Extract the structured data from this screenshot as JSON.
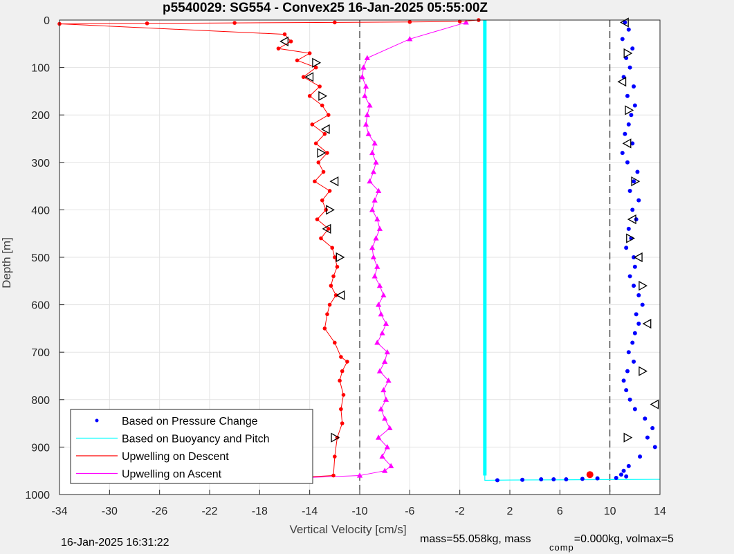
{
  "chart_data": {
    "type": "scatter",
    "title": "p5540029: SG554 - Convex25 16-Jan-2025 05:55:00Z",
    "xlabel": "Vertical Velocity [cm/s]",
    "ylabel": "Depth [m]",
    "xlim": [
      -34,
      14
    ],
    "ylim": [
      0,
      1000
    ],
    "y_reversed": true,
    "grid": true,
    "x_ticks": [
      -34,
      -30,
      -26,
      -22,
      -18,
      -14,
      -10,
      -6,
      -2,
      2,
      6,
      10,
      14
    ],
    "y_ticks": [
      0,
      100,
      200,
      300,
      400,
      500,
      600,
      700,
      800,
      900,
      1000
    ],
    "legend_position": "bottom-left",
    "reference_lines_x": [
      -10,
      10
    ],
    "series": [
      {
        "name": "Based on Pressure Change",
        "color": "#0000ff",
        "style": "dots",
        "x": [
          11.2,
          11.5,
          11.0,
          11.8,
          11.3,
          11.6,
          11.1,
          11.9,
          11.4,
          12.0,
          11.7,
          11.5,
          11.2,
          11.8,
          11.0,
          11.4,
          12.2,
          11.9,
          11.6,
          12.3,
          11.8,
          12.1,
          11.5,
          11.7,
          11.3,
          11.9,
          12.0,
          11.6,
          11.9,
          12.3,
          12.6,
          12.1,
          12.3,
          12.0,
          11.8,
          11.5,
          11.9,
          11.4,
          11.1,
          11.3,
          11.6,
          12.0,
          12.8,
          13.4,
          13.0,
          13.6,
          12.4,
          11.5,
          11.1,
          10.9,
          11.3,
          10.5,
          9.0,
          7.8,
          6.5,
          5.5,
          4.5,
          3.0,
          1.0
        ],
        "y": [
          5,
          20,
          40,
          60,
          80,
          100,
          120,
          140,
          160,
          180,
          200,
          220,
          240,
          260,
          280,
          300,
          320,
          340,
          360,
          380,
          400,
          420,
          440,
          460,
          480,
          500,
          520,
          540,
          560,
          580,
          600,
          620,
          640,
          660,
          680,
          700,
          720,
          740,
          760,
          780,
          800,
          820,
          840,
          860,
          880,
          900,
          920,
          940,
          950,
          958,
          962,
          965,
          966,
          967,
          968,
          968,
          968,
          969,
          970
        ]
      },
      {
        "name": "Based on Buoyancy and Pitch",
        "color": "#00ffff",
        "style": "line",
        "x": [
          0,
          0,
          0,
          0,
          2,
          6,
          10,
          14
        ],
        "y": [
          0,
          500,
          960,
          970,
          969.5,
          969,
          968.5,
          968
        ]
      },
      {
        "name": "Upwelling on Descent",
        "color": "#ff0000",
        "style": "line-dots",
        "x": [
          -0.5,
          -2.0,
          -6.0,
          -12.0,
          -20.0,
          -27.0,
          -34.0,
          -16.0,
          -15.5,
          -16.5,
          -14.0,
          -15.0,
          -13.5,
          -14.5,
          -13.2,
          -14.0,
          -13.0,
          -12.5,
          -13.8,
          -12.8,
          -13.5,
          -12.6,
          -13.3,
          -12.9,
          -13.6,
          -12.4,
          -13.0,
          -12.7,
          -13.4,
          -12.5,
          -13.1,
          -12.2,
          -12.0,
          -11.8,
          -12.1,
          -12.3,
          -11.9,
          -12.4,
          -12.6,
          -12.8,
          -12.0,
          -11.5,
          -11.0,
          -11.4,
          -11.6,
          -11.3,
          -11.5,
          -11.4,
          -11.8,
          -12.0,
          -12.1,
          -17.5
        ],
        "y": [
          0,
          3,
          4,
          5,
          6,
          7,
          8,
          30,
          45,
          60,
          70,
          85,
          100,
          120,
          140,
          160,
          180,
          200,
          220,
          240,
          260,
          280,
          300,
          320,
          340,
          360,
          380,
          400,
          420,
          440,
          460,
          480,
          500,
          520,
          540,
          560,
          580,
          600,
          620,
          650,
          680,
          710,
          720,
          740,
          760,
          790,
          820,
          850,
          880,
          920,
          960,
          968
        ]
      },
      {
        "name": "Upwelling on Ascent",
        "color": "#ff00ff",
        "style": "line-triangles",
        "x": [
          -18.0,
          -10.0,
          -8.0,
          -7.5,
          -8.2,
          -7.8,
          -8.5,
          -7.6,
          -8.0,
          -8.3,
          -7.9,
          -8.1,
          -7.7,
          -8.4,
          -8.0,
          -7.8,
          -8.6,
          -8.2,
          -7.9,
          -8.3,
          -8.5,
          -8.1,
          -8.4,
          -8.8,
          -8.6,
          -8.9,
          -9.0,
          -8.7,
          -8.4,
          -8.6,
          -9.0,
          -8.8,
          -8.5,
          -9.2,
          -8.9,
          -8.7,
          -9.0,
          -8.8,
          -9.3,
          -9.5,
          -9.4,
          -9.2,
          -9.6,
          -9.5,
          -9.8,
          -9.7,
          -9.4,
          -6.0,
          -1.5
        ],
        "y": [
          968,
          960,
          950,
          940,
          920,
          900,
          880,
          860,
          840,
          820,
          800,
          780,
          760,
          740,
          720,
          700,
          680,
          660,
          640,
          620,
          600,
          580,
          560,
          540,
          520,
          500,
          480,
          460,
          440,
          420,
          400,
          380,
          360,
          340,
          320,
          300,
          280,
          260,
          240,
          220,
          200,
          180,
          160,
          140,
          120,
          100,
          80,
          40,
          5
        ]
      }
    ],
    "triangle_markers": {
      "descent_x": [
        -16.0,
        -13.5,
        -14.0,
        -13.0,
        -12.7,
        -13.1,
        -12.0,
        -12.4,
        -12.6,
        -11.6,
        -11.5,
        -12.0
      ],
      "descent_y": [
        45,
        90,
        120,
        160,
        230,
        280,
        340,
        400,
        440,
        500,
        580,
        880
      ],
      "pressure_x": [
        11.2,
        11.4,
        11.0,
        11.5,
        11.4,
        12.0,
        11.8,
        11.6,
        12.3,
        12.6,
        13.0,
        12.6,
        13.6,
        11.4
      ],
      "pressure_y": [
        5,
        70,
        130,
        190,
        260,
        340,
        420,
        460,
        500,
        560,
        640,
        740,
        810,
        880
      ]
    },
    "annotation_points": [
      {
        "x": 8.4,
        "y": 958,
        "color": "#ff0000"
      }
    ]
  },
  "footer": {
    "timestamp": "16-Jan-2025 16:31:22",
    "mass_text": "mass=55.058kg, mass",
    "comp_sub": "comp",
    "mass_comp_text": "=0.000kg, volmax=5"
  }
}
